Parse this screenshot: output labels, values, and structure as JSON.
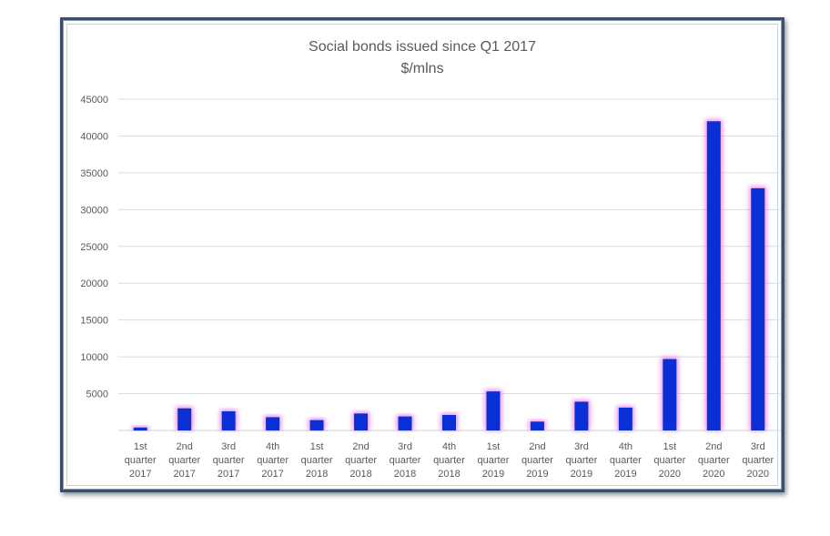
{
  "chart_data": {
    "type": "bar",
    "title": "Social bonds issued since Q1 2017",
    "subtitle": "$/mlns",
    "xlabel": "",
    "ylabel": "",
    "ylim": [
      0,
      45000
    ],
    "yticks": [
      5000,
      10000,
      15000,
      20000,
      25000,
      30000,
      35000,
      40000,
      45000
    ],
    "grid": true,
    "legend": "none",
    "bar_color": "#0a2fd4",
    "glow_color": "#e86ce8",
    "categories": [
      [
        "1st",
        "quarter",
        "2017"
      ],
      [
        "2nd",
        "quarter",
        "2017"
      ],
      [
        "3rd",
        "quarter",
        "2017"
      ],
      [
        "4th",
        "quarter",
        "2017"
      ],
      [
        "1st",
        "quarter",
        "2018"
      ],
      [
        "2nd",
        "quarter",
        "2018"
      ],
      [
        "3rd",
        "quarter",
        "2018"
      ],
      [
        "4th",
        "quarter",
        "2018"
      ],
      [
        "1st",
        "quarter",
        "2019"
      ],
      [
        "2nd",
        "quarter",
        "2019"
      ],
      [
        "3rd",
        "quarter",
        "2019"
      ],
      [
        "4th",
        "quarter",
        "2019"
      ],
      [
        "1st",
        "quarter",
        "2020"
      ],
      [
        "2nd",
        "quarter",
        "2020"
      ],
      [
        "3rd",
        "quarter",
        "2020"
      ]
    ],
    "values": [
      400,
      3000,
      2600,
      1800,
      1400,
      2300,
      1900,
      2100,
      5300,
      1200,
      3900,
      3100,
      9700,
      42000,
      32900
    ]
  }
}
